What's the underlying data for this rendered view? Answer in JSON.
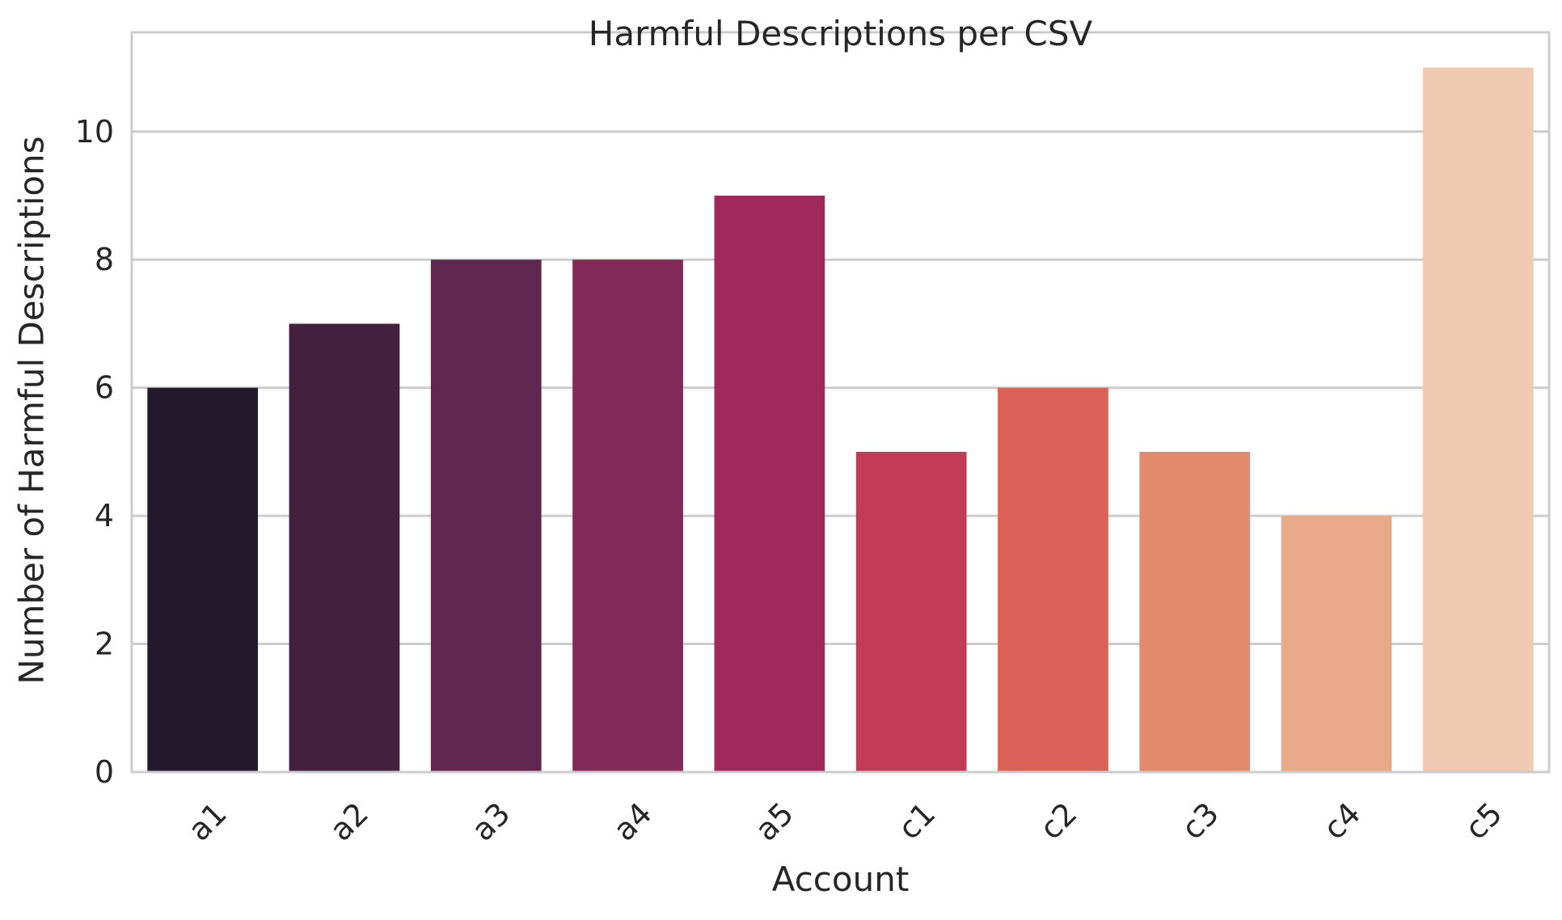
{
  "chart_data": {
    "type": "bar",
    "title": "Harmful Descriptions per CSV",
    "xlabel": "Account",
    "ylabel": "Number of Harmful Descriptions",
    "categories": [
      "a1",
      "a2",
      "a3",
      "a4",
      "a5",
      "c1",
      "c2",
      "c3",
      "c4",
      "c5"
    ],
    "values": [
      6,
      7,
      8,
      8,
      9,
      5,
      6,
      5,
      4,
      11
    ],
    "colors": [
      "#231a2e",
      "#42203e",
      "#5f2650",
      "#82295a",
      "#a1285a",
      "#c23c55",
      "#d96156",
      "#e18a6c",
      "#e8aa88",
      "#f0cab3"
    ],
    "ylim": [
      0,
      11.55
    ],
    "yticks": [
      0,
      2,
      4,
      6,
      8,
      10
    ],
    "xtick_rotation": 45,
    "grid": "y",
    "legend": "none"
  }
}
